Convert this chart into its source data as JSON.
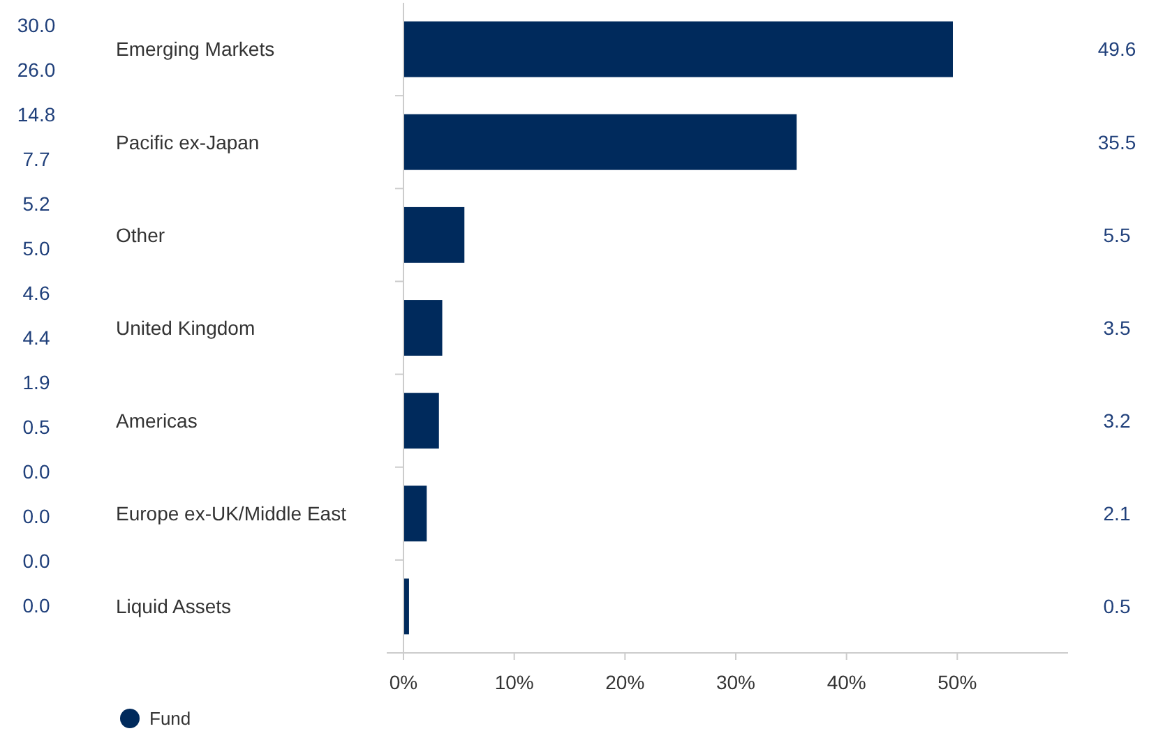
{
  "chart_data": {
    "type": "bar",
    "orientation": "horizontal",
    "categories": [
      "Emerging Markets",
      "Pacific ex-Japan",
      "Other",
      "United Kingdom",
      "Americas",
      "Europe ex-UK/Middle East",
      "Liquid Assets"
    ],
    "series": [
      {
        "name": "Fund",
        "color": "#002a5c",
        "values": [
          49.6,
          35.5,
          5.5,
          3.5,
          3.2,
          2.1,
          0.5
        ]
      }
    ],
    "xlim": [
      0,
      60
    ],
    "xticks": [
      {
        "value": 0,
        "label": "0%"
      },
      {
        "value": 10,
        "label": "10%"
      },
      {
        "value": 20,
        "label": "20%"
      },
      {
        "value": 30,
        "label": "30%"
      },
      {
        "value": 40,
        "label": "40%"
      },
      {
        "value": 50,
        "label": "50%"
      }
    ],
    "data_labels": true,
    "legend": "bottom left",
    "grid": false,
    "annotations": [
      "30.0",
      "26.0",
      "14.8",
      "7.7",
      "5.2",
      "5.0",
      "4.6",
      "4.4",
      "1.9",
      "0.5",
      "0.0",
      "0.0",
      "0.0",
      "0.0"
    ]
  }
}
